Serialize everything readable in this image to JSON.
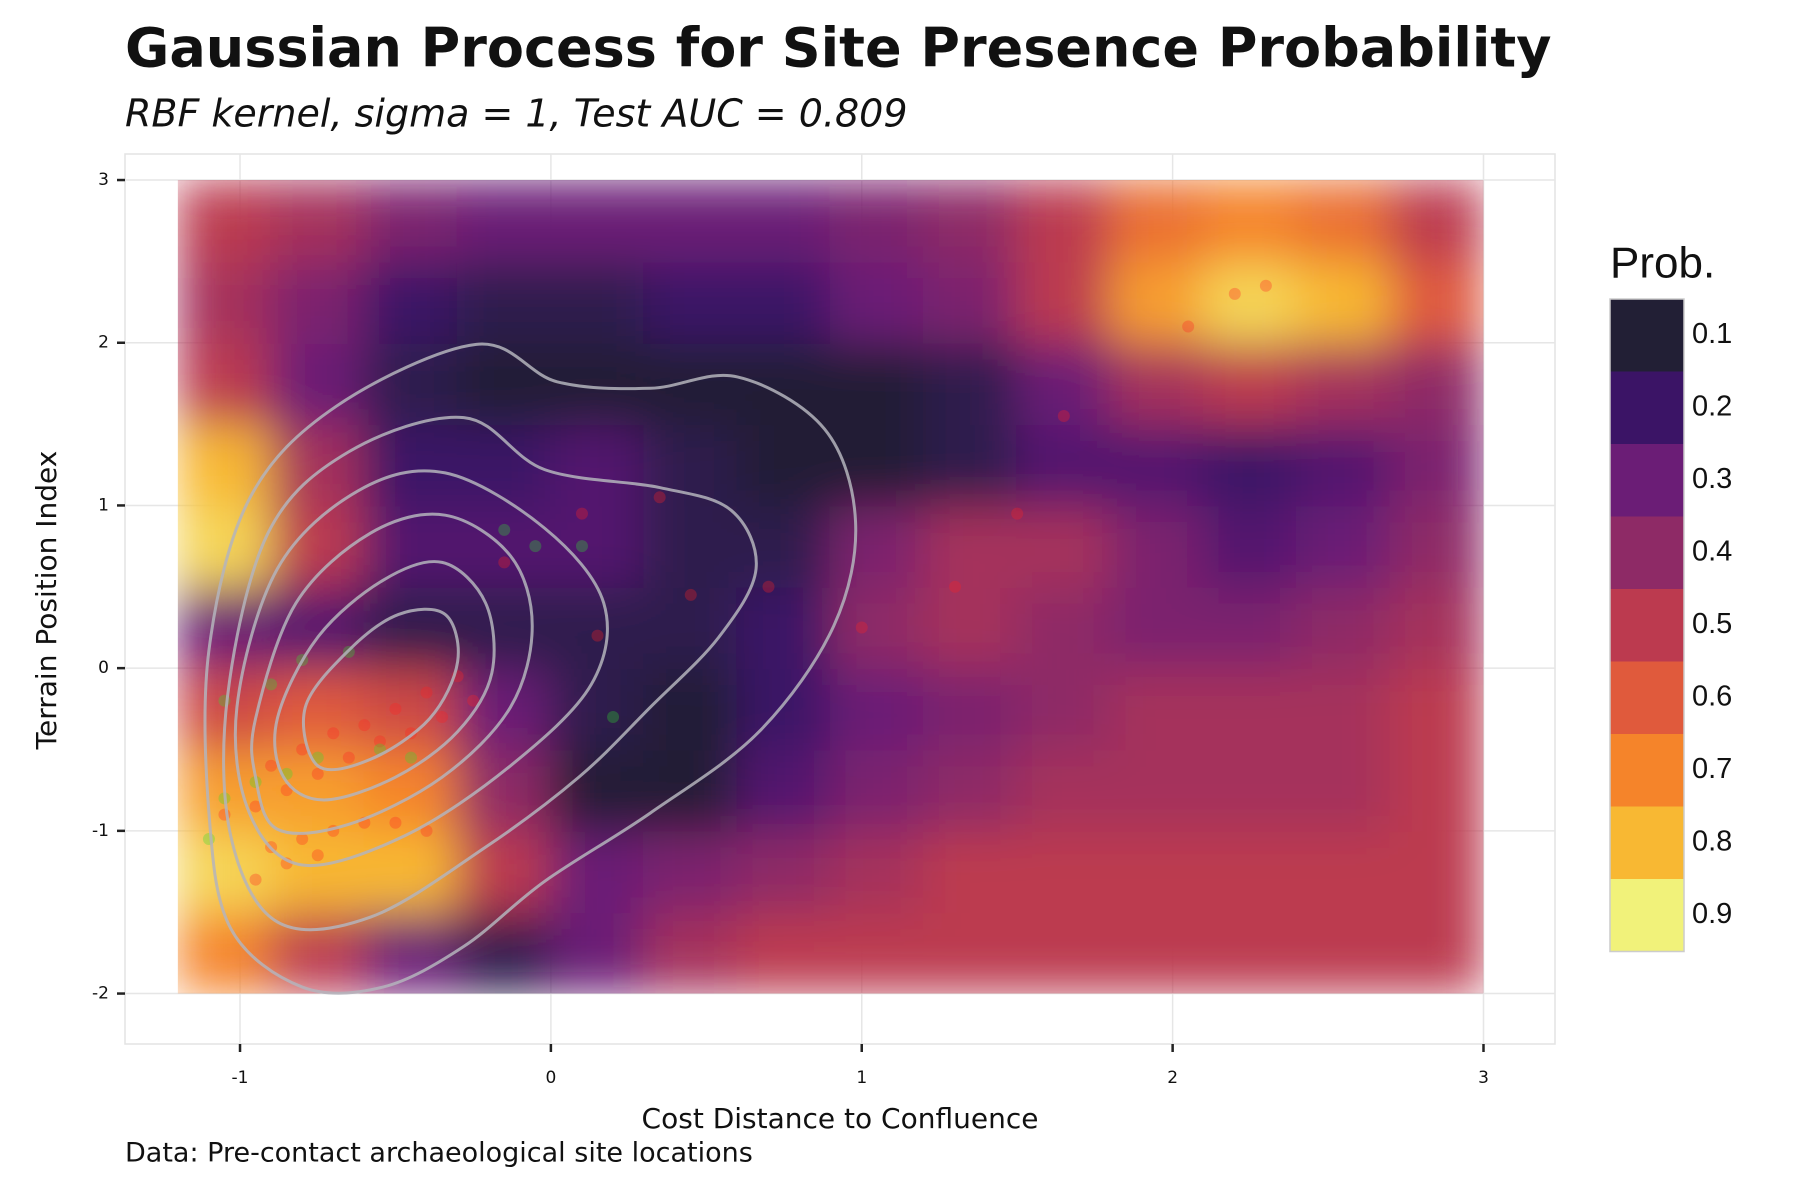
{
  "chart_data": {
    "type": "heatmap",
    "title": "Gaussian Process for Site Presence Probability",
    "subtitle": "RBF kernel, sigma = 1, Test AUC = 0.809",
    "caption": "Data: Pre-contact archaeological site locations",
    "x_label": "Cost Distance to Confluence",
    "y_label": "Terrain Position Index",
    "xlim": [
      -1.37,
      3.23
    ],
    "ylim": [
      -2.31,
      3.16
    ],
    "xticks": [
      -1,
      0,
      1,
      2,
      3
    ],
    "yticks": [
      -2,
      -1,
      0,
      1,
      2,
      3
    ],
    "grid": true,
    "x": [
      -1.05,
      -0.75,
      -0.45,
      -0.15,
      0.15,
      0.45,
      0.75,
      1.05,
      1.35,
      1.65,
      1.95,
      2.25,
      2.55,
      2.85
    ],
    "y": [
      -1.75,
      -1.25,
      -0.75,
      -0.25,
      0.25,
      0.75,
      1.25,
      1.75,
      2.25,
      2.75
    ],
    "z": [
      [
        0.7,
        0.5,
        0.3,
        0.15,
        0.3,
        0.45,
        0.5,
        0.5,
        0.5,
        0.5,
        0.5,
        0.5,
        0.5,
        0.5
      ],
      [
        0.85,
        0.8,
        0.8,
        0.5,
        0.3,
        0.35,
        0.4,
        0.45,
        0.5,
        0.5,
        0.5,
        0.5,
        0.5,
        0.5
      ],
      [
        0.75,
        0.75,
        0.7,
        0.4,
        0.1,
        0.1,
        0.25,
        0.35,
        0.4,
        0.45,
        0.45,
        0.45,
        0.45,
        0.5
      ],
      [
        0.55,
        0.6,
        0.55,
        0.3,
        0.15,
        0.1,
        0.2,
        0.3,
        0.35,
        0.4,
        0.45,
        0.45,
        0.45,
        0.5
      ],
      [
        0.3,
        0.25,
        0.15,
        0.15,
        0.15,
        0.15,
        0.2,
        0.4,
        0.45,
        0.4,
        0.35,
        0.35,
        0.4,
        0.45
      ],
      [
        0.85,
        0.5,
        0.25,
        0.25,
        0.25,
        0.15,
        0.15,
        0.35,
        0.45,
        0.45,
        0.35,
        0.25,
        0.3,
        0.4
      ],
      [
        0.8,
        0.45,
        0.2,
        0.2,
        0.25,
        0.15,
        0.1,
        0.1,
        0.15,
        0.25,
        0.25,
        0.2,
        0.25,
        0.35
      ],
      [
        0.5,
        0.3,
        0.15,
        0.1,
        0.1,
        0.1,
        0.1,
        0.1,
        0.15,
        0.3,
        0.45,
        0.5,
        0.45,
        0.4
      ],
      [
        0.45,
        0.35,
        0.2,
        0.15,
        0.15,
        0.2,
        0.2,
        0.3,
        0.35,
        0.5,
        0.75,
        0.85,
        0.8,
        0.6
      ],
      [
        0.5,
        0.45,
        0.35,
        0.3,
        0.3,
        0.3,
        0.3,
        0.35,
        0.4,
        0.5,
        0.65,
        0.7,
        0.65,
        0.5
      ]
    ],
    "legend": {
      "title": "Prob.",
      "breaks": [
        0.1,
        0.2,
        0.3,
        0.4,
        0.5,
        0.6,
        0.7,
        0.8,
        0.9
      ],
      "colors": [
        "#221f35",
        "#3b1466",
        "#6b1d76",
        "#8e2a66",
        "#bc3a4f",
        "#e05a3c",
        "#f5842a",
        "#f8b833",
        "#f1f27a"
      ]
    },
    "contour_color": "#b4b4bc",
    "contours": [
      {
        "x": [
          -1.1,
          -0.97,
          -0.69,
          -0.24,
          0.02,
          0.32,
          0.6,
          0.88,
          0.98,
          0.91,
          0.67,
          0.32,
          -0.02,
          -0.28,
          -0.54,
          -0.8,
          -1.03,
          -1.1
        ],
        "y": [
          0.11,
          1.04,
          1.61,
          1.99,
          1.76,
          1.72,
          1.79,
          1.47,
          0.9,
          0.26,
          -0.39,
          -0.89,
          -1.31,
          -1.71,
          -1.96,
          -1.96,
          -1.6,
          -0.89
        ]
      },
      {
        "x": [
          -1.04,
          -0.91,
          -0.65,
          -0.28,
          -0.02,
          0.35,
          0.58,
          0.66,
          0.54,
          0.32,
          0.09,
          -0.21,
          -0.58,
          -0.88,
          -1.03
        ],
        "y": [
          -0.17,
          0.83,
          1.33,
          1.54,
          1.22,
          1.11,
          0.97,
          0.61,
          0.19,
          -0.24,
          -0.67,
          -1.1,
          -1.53,
          -1.56,
          -1.03
        ]
      },
      {
        "x": [
          -1.01,
          -0.88,
          -0.62,
          -0.34,
          -0.02,
          0.17,
          0.13,
          -0.13,
          -0.47,
          -0.8,
          -0.97
        ],
        "y": [
          -0.24,
          0.61,
          1.09,
          1.2,
          0.86,
          0.4,
          -0.1,
          -0.6,
          -1.03,
          -1.21,
          -0.89
        ]
      },
      {
        "x": [
          -0.95,
          -0.82,
          -0.58,
          -0.34,
          -0.13,
          -0.06,
          -0.13,
          -0.35,
          -0.65,
          -0.88,
          -0.95
        ],
        "y": [
          -0.31,
          0.4,
          0.83,
          0.94,
          0.69,
          0.26,
          -0.24,
          -0.67,
          -0.96,
          -0.99,
          -0.67
        ]
      },
      {
        "x": [
          -0.88,
          -0.75,
          -0.54,
          -0.35,
          -0.21,
          -0.19,
          -0.3,
          -0.5,
          -0.73,
          -0.86
        ],
        "y": [
          -0.31,
          0.19,
          0.54,
          0.65,
          0.4,
          -0.03,
          -0.39,
          -0.67,
          -0.81,
          -0.67
        ]
      },
      {
        "x": [
          -0.79,
          -0.65,
          -0.49,
          -0.34,
          -0.3,
          -0.39,
          -0.58,
          -0.75
        ],
        "y": [
          -0.24,
          0.11,
          0.33,
          0.33,
          0.04,
          -0.31,
          -0.56,
          -0.6
        ]
      }
    ],
    "points": [
      {
        "color": "#ff2020",
        "x": [
          -1.05,
          -0.95,
          -0.85,
          -0.75,
          -0.65,
          -0.55,
          -0.45,
          -0.35,
          -0.25,
          -0.9,
          -0.8,
          -0.7,
          -0.6,
          -0.5,
          -0.4,
          -0.3,
          -0.9,
          -0.8,
          -0.7,
          -0.6,
          -0.5,
          -0.4,
          -0.95,
          -0.85,
          -0.75,
          0.1,
          0.35,
          0.7,
          1.0,
          1.5,
          1.65,
          2.2,
          2.05,
          2.3,
          0.15,
          -0.15,
          0.45,
          1.3
        ],
        "y": [
          -0.9,
          -0.85,
          -0.75,
          -0.65,
          -0.55,
          -0.45,
          -0.4,
          -0.3,
          -0.2,
          -0.6,
          -0.5,
          -0.4,
          -0.35,
          -0.25,
          -0.15,
          -0.05,
          -1.1,
          -1.05,
          -1.0,
          -0.95,
          -0.95,
          -1.0,
          -1.3,
          -1.2,
          -1.15,
          0.95,
          1.05,
          0.5,
          0.25,
          0.95,
          1.55,
          2.3,
          2.1,
          2.35,
          0.2,
          0.65,
          0.45,
          0.5
        ]
      },
      {
        "color": "#30e030",
        "x": [
          -1.1,
          -1.05,
          -0.95,
          -0.85,
          -0.75,
          -0.55,
          -0.45,
          -1.05,
          -0.9,
          -0.8,
          -0.65,
          -0.15,
          -0.05,
          0.1,
          0.2
        ],
        "y": [
          -1.05,
          -0.8,
          -0.7,
          -0.65,
          -0.55,
          -0.5,
          -0.55,
          -0.2,
          -0.1,
          0.05,
          0.1,
          0.85,
          0.75,
          0.75,
          -0.3
        ]
      }
    ]
  }
}
